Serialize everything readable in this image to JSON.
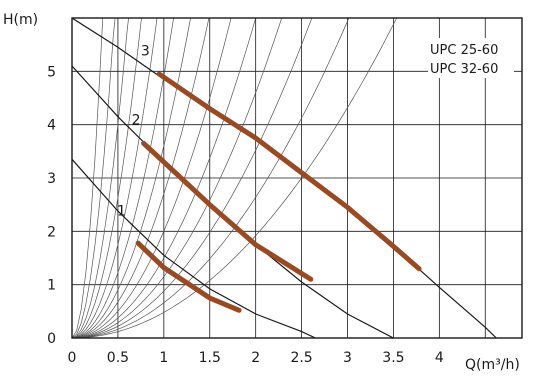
{
  "chart_data": {
    "type": "line",
    "title": "",
    "xlabel": "Q(m³/h)",
    "ylabel": "H(m)",
    "xlim": [
      0,
      4.9
    ],
    "ylim": [
      0,
      6
    ],
    "x_ticks": [
      "0",
      "0.5",
      "1",
      "1.5",
      "2",
      "2.5",
      "3",
      "3.5",
      "4"
    ],
    "y_ticks": [
      "0",
      "1",
      "2",
      "3",
      "4",
      "5"
    ],
    "models": [
      "UPC 25-60",
      "UPC 32-60"
    ],
    "grid": true,
    "band_color": "#9a4a22",
    "series": [
      {
        "name": "1",
        "points": [
          [
            0,
            3.35
          ],
          [
            0.5,
            2.38
          ],
          [
            1.0,
            1.55
          ],
          [
            1.5,
            0.92
          ],
          [
            2.0,
            0.45
          ],
          [
            2.5,
            0.12
          ],
          [
            2.65,
            0.0
          ]
        ],
        "band": [
          [
            0.72,
            1.78
          ],
          [
            1.0,
            1.32
          ],
          [
            1.5,
            0.75
          ],
          [
            1.82,
            0.52
          ]
        ]
      },
      {
        "name": "2",
        "points": [
          [
            0,
            5.1
          ],
          [
            0.5,
            4.15
          ],
          [
            1.0,
            3.3
          ],
          [
            1.5,
            2.5
          ],
          [
            2.0,
            1.75
          ],
          [
            2.5,
            1.05
          ],
          [
            3.0,
            0.45
          ],
          [
            3.5,
            0.0
          ]
        ],
        "band": [
          [
            0.78,
            3.65
          ],
          [
            1.0,
            3.3
          ],
          [
            1.5,
            2.5
          ],
          [
            2.0,
            1.75
          ],
          [
            2.6,
            1.1
          ]
        ]
      },
      {
        "name": "3",
        "points": [
          [
            0,
            6.0
          ],
          [
            0.5,
            5.45
          ],
          [
            1.0,
            4.85
          ],
          [
            1.5,
            4.3
          ],
          [
            2.0,
            3.75
          ],
          [
            2.5,
            3.1
          ],
          [
            3.0,
            2.45
          ],
          [
            3.5,
            1.72
          ],
          [
            4.0,
            0.95
          ],
          [
            4.5,
            0.2
          ],
          [
            4.62,
            0.0
          ]
        ],
        "band": [
          [
            0.95,
            4.95
          ],
          [
            1.5,
            4.3
          ],
          [
            2.0,
            3.75
          ],
          [
            2.5,
            3.1
          ],
          [
            3.0,
            2.45
          ],
          [
            3.5,
            1.72
          ],
          [
            3.78,
            1.3
          ]
        ]
      }
    ],
    "system_curves_k": [
      54,
      28,
      16,
      10.5,
      7,
      4.9,
      3.6,
      2.7,
      2.0,
      1.5,
      1.15,
      0.88,
      0.66,
      0.48
    ]
  }
}
